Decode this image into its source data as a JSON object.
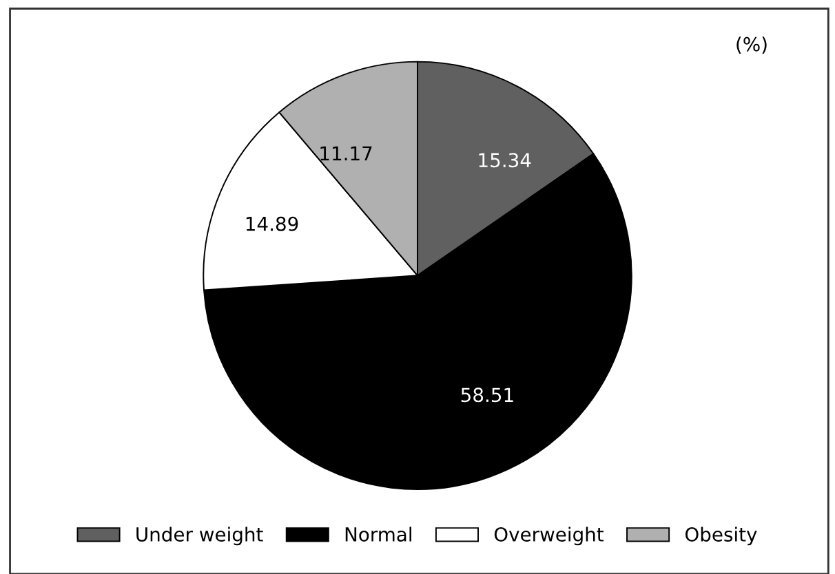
{
  "chart_data": {
    "type": "pie",
    "categories": [
      "Under weight",
      "Normal",
      "Overweight",
      "Obesity"
    ],
    "values": [
      15.34,
      58.51,
      14.89,
      11.17
    ],
    "colors": [
      "#606060",
      "#000000",
      "#ffffff",
      "#b0b0b0"
    ],
    "data_labels": true,
    "legend": "bottom",
    "annotations": [
      "(%)"
    ]
  }
}
